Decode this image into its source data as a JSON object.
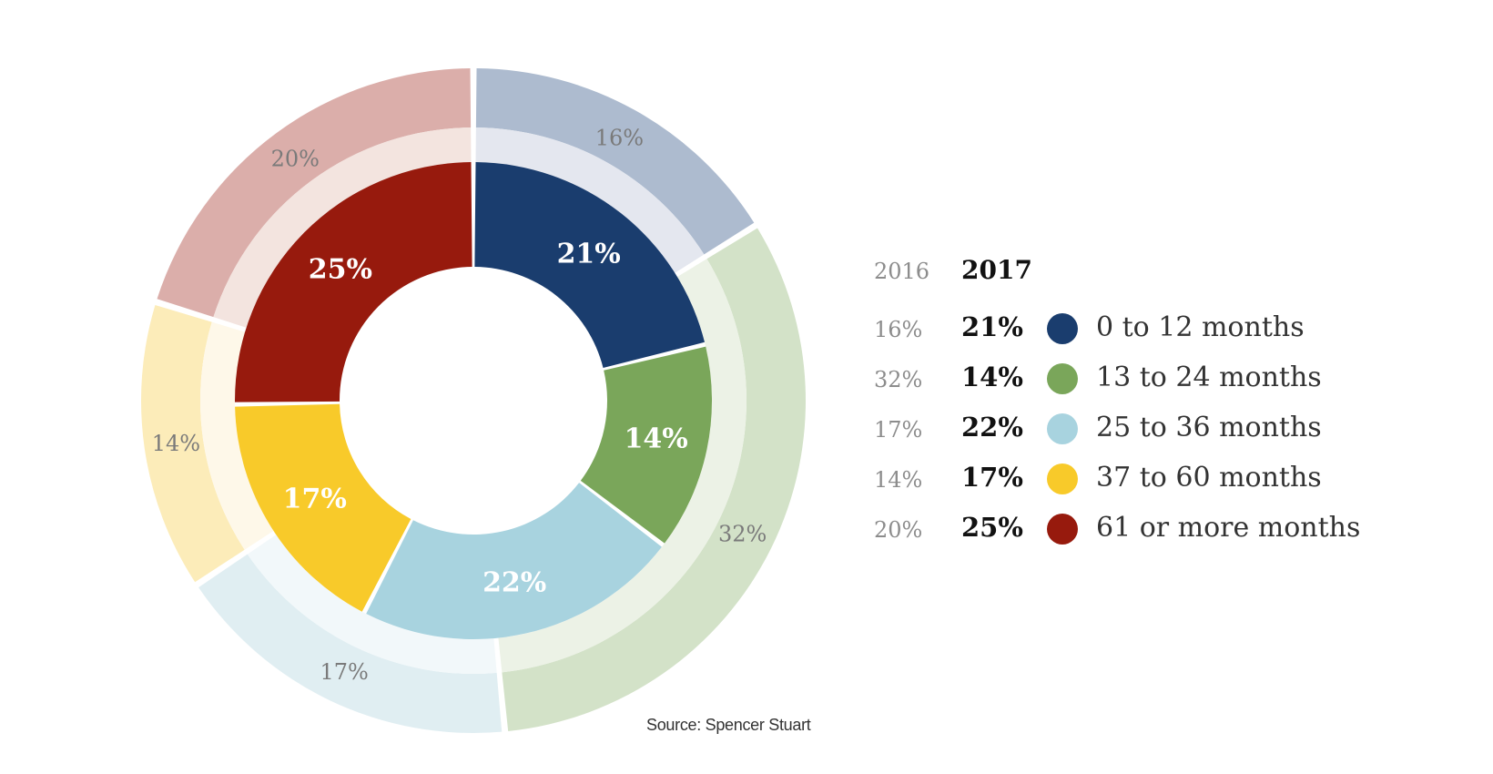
{
  "chart_data": {
    "type": "pie",
    "legend": {
      "year_2016_label": "2016",
      "year_2017_label": "2017",
      "placement": "right"
    },
    "categories": [
      "0 to 12 months",
      "13 to 24 months",
      "25 to 36 months",
      "37 to 60 months",
      "61 or more months"
    ],
    "series": [
      {
        "name": "2017",
        "values": [
          21,
          14,
          22,
          17,
          25
        ],
        "labels": [
          "21%",
          "14%",
          "22%",
          "17%",
          "25%"
        ]
      },
      {
        "name": "2016",
        "values": [
          16,
          32,
          17,
          14,
          20
        ],
        "labels": [
          "16%",
          "32%",
          "17%",
          "14%",
          "20%"
        ]
      }
    ],
    "colors_2017": [
      "#1a3d6e",
      "#7aa65a",
      "#a8d3df",
      "#f8ca2a",
      "#971a0d"
    ],
    "colors_2016_outer": [
      "#adbbcf",
      "#d3e2c8",
      "#e0eef2",
      "#fcecb9",
      "#dbaeaa"
    ],
    "colors_2016_ring": [
      "#e4e7ef",
      "#ecf2e6",
      "#f2f8fa",
      "#fef8e9",
      "#f3e4df"
    ],
    "source": "Source: Spencer Stuart"
  }
}
